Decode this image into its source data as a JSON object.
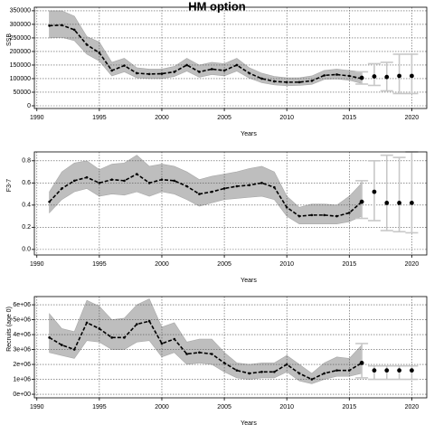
{
  "chart_data": [
    {
      "type": "line",
      "title": "HM option",
      "ylabel": "SSB",
      "xlabel": "Years",
      "x": [
        1991,
        1992,
        1993,
        1994,
        1995,
        1996,
        1997,
        1998,
        1999,
        2000,
        2001,
        2002,
        2003,
        2004,
        2005,
        2006,
        2007,
        2008,
        2009,
        2010,
        2011,
        2012,
        2013,
        2014,
        2015,
        2016
      ],
      "values": [
        295000,
        297000,
        280000,
        225000,
        195000,
        130000,
        148000,
        120000,
        117000,
        118000,
        125000,
        150000,
        125000,
        135000,
        130000,
        150000,
        120000,
        100000,
        90000,
        87000,
        87000,
        92000,
        112000,
        115000,
        110000,
        100000
      ],
      "upper": [
        350000,
        350000,
        330000,
        255000,
        235000,
        160000,
        175000,
        140000,
        135000,
        135000,
        145000,
        175000,
        150000,
        160000,
        155000,
        175000,
        140000,
        120000,
        108000,
        103000,
        103000,
        110000,
        130000,
        135000,
        130000,
        125000
      ],
      "lower": [
        250000,
        252000,
        240000,
        190000,
        165000,
        110000,
        125000,
        103000,
        100000,
        100000,
        108000,
        128000,
        105000,
        115000,
        110000,
        128000,
        102000,
        85000,
        77000,
        74000,
        75000,
        79000,
        97000,
        99000,
        94000,
        82000
      ],
      "proj_x": [
        2016,
        2017,
        2018,
        2019,
        2020
      ],
      "proj_values": [
        103000,
        108000,
        106000,
        110000,
        110000
      ],
      "proj_upper": [
        125000,
        155000,
        160000,
        190000,
        190000
      ],
      "proj_lower": [
        80000,
        75000,
        55000,
        45000,
        45000
      ],
      "xlim": [
        1989.8,
        2021.2
      ],
      "xticks": [
        1990,
        1995,
        2000,
        2005,
        2010,
        2015,
        2020
      ],
      "ylim": [
        -10000,
        363000
      ],
      "yticks": [
        0,
        50000,
        100000,
        150000,
        200000,
        250000,
        300000,
        350000
      ],
      "grid": true,
      "color": "#000000",
      "band_color": "#bebebe",
      "errorbar_color": "#c8c8c8"
    },
    {
      "type": "line",
      "ylabel": "F3-7",
      "xlabel": "Years",
      "x": [
        1991,
        1992,
        1993,
        1994,
        1995,
        1996,
        1997,
        1998,
        1999,
        2000,
        2001,
        2002,
        2003,
        2004,
        2005,
        2006,
        2007,
        2008,
        2009,
        2010,
        2011,
        2012,
        2013,
        2014,
        2015,
        2016
      ],
      "values": [
        0.43,
        0.55,
        0.62,
        0.65,
        0.6,
        0.63,
        0.62,
        0.68,
        0.6,
        0.63,
        0.62,
        0.57,
        0.5,
        0.52,
        0.55,
        0.57,
        0.58,
        0.6,
        0.56,
        0.38,
        0.3,
        0.31,
        0.31,
        0.3,
        0.33,
        0.43
      ],
      "upper": [
        0.52,
        0.7,
        0.78,
        0.8,
        0.72,
        0.77,
        0.78,
        0.85,
        0.75,
        0.77,
        0.75,
        0.7,
        0.63,
        0.66,
        0.68,
        0.7,
        0.73,
        0.75,
        0.7,
        0.48,
        0.38,
        0.41,
        0.41,
        0.4,
        0.48,
        0.6
      ],
      "lower": [
        0.33,
        0.45,
        0.52,
        0.55,
        0.48,
        0.5,
        0.49,
        0.52,
        0.48,
        0.52,
        0.5,
        0.45,
        0.39,
        0.42,
        0.45,
        0.46,
        0.47,
        0.48,
        0.45,
        0.3,
        0.23,
        0.23,
        0.23,
        0.23,
        0.25,
        0.3
      ],
      "proj_x": [
        2016,
        2017,
        2018,
        2019,
        2020
      ],
      "proj_values": [
        0.43,
        0.52,
        0.42,
        0.42,
        0.42
      ],
      "proj_upper": [
        0.62,
        0.8,
        0.85,
        0.83,
        0.88
      ],
      "proj_lower": [
        0.28,
        0.26,
        0.17,
        0.16,
        0.15
      ],
      "xlim": [
        1989.8,
        2021.2
      ],
      "xticks": [
        1990,
        1995,
        2000,
        2005,
        2010,
        2015,
        2020
      ],
      "ylim": [
        -0.05,
        0.88
      ],
      "yticks": [
        {
          "value": 0,
          "label": "0.0"
        },
        {
          "value": 0.2,
          "label": "0.2"
        },
        {
          "value": 0.4,
          "label": "0.4"
        },
        {
          "value": 0.6,
          "label": "0.6"
        },
        {
          "value": 0.8,
          "label": "0.8"
        }
      ],
      "grid": true,
      "color": "#000000",
      "band_color": "#bebebe",
      "errorbar_color": "#c8c8c8"
    },
    {
      "type": "line",
      "ylabel": "Recruits (age 0)",
      "xlabel": "Years",
      "x": [
        1991,
        1992,
        1993,
        1994,
        1995,
        1996,
        1997,
        1998,
        1999,
        2000,
        2001,
        2002,
        2003,
        2004,
        2005,
        2006,
        2007,
        2008,
        2009,
        2010,
        2011,
        2012,
        2013,
        2014,
        2015,
        2016
      ],
      "values": [
        3800000,
        3300000,
        3000000,
        4800000,
        4400000,
        3800000,
        3800000,
        4700000,
        4900000,
        3400000,
        3700000,
        2700000,
        2800000,
        2700000,
        2100000,
        1600000,
        1400000,
        1500000,
        1500000,
        2000000,
        1400000,
        1000000,
        1400000,
        1600000,
        1600000,
        2100000
      ],
      "upper": [
        5400000,
        4400000,
        4200000,
        6300000,
        5900000,
        5000000,
        5100000,
        6000000,
        6400000,
        4500000,
        4800000,
        3500000,
        3700000,
        3700000,
        2800000,
        2100000,
        2000000,
        2100000,
        2100000,
        2600000,
        2000000,
        1400000,
        2100000,
        2500000,
        2400000,
        3300000
      ],
      "lower": [
        2800000,
        2600000,
        2400000,
        3600000,
        3500000,
        3000000,
        3000000,
        3500000,
        3600000,
        2500000,
        2800000,
        2000000,
        2100000,
        2000000,
        1500000,
        1100000,
        1000000,
        1100000,
        1100000,
        1500000,
        900000,
        700000,
        1000000,
        1200000,
        1200000,
        1400000
      ],
      "proj_x": [
        2016,
        2017,
        2018,
        2019,
        2020
      ],
      "proj_values": [
        2100000,
        1600000,
        1600000,
        1600000,
        1600000
      ],
      "proj_upper": [
        3400000,
        1900000,
        1900000,
        1900000,
        1900000
      ],
      "proj_lower": [
        1100000,
        1000000,
        1000000,
        1000000,
        1000000
      ],
      "xlim": [
        1989.8,
        2021.2
      ],
      "xticks": [
        1990,
        1995,
        2000,
        2005,
        2010,
        2015,
        2020
      ],
      "ylim": [
        -240000,
        6550000
      ],
      "yticks": [
        {
          "value": 0,
          "label": "0e+00"
        },
        {
          "value": 1000000,
          "label": "1e+06"
        },
        {
          "value": 2000000,
          "label": "2e+06"
        },
        {
          "value": 3000000,
          "label": "3e+06"
        },
        {
          "value": 4000000,
          "label": "4e+06"
        },
        {
          "value": 5000000,
          "label": "5e+06"
        },
        {
          "value": 6000000,
          "label": "6e+06"
        }
      ],
      "grid": true,
      "color": "#000000",
      "band_color": "#bebebe",
      "errorbar_color": "#c8c8c8"
    }
  ]
}
